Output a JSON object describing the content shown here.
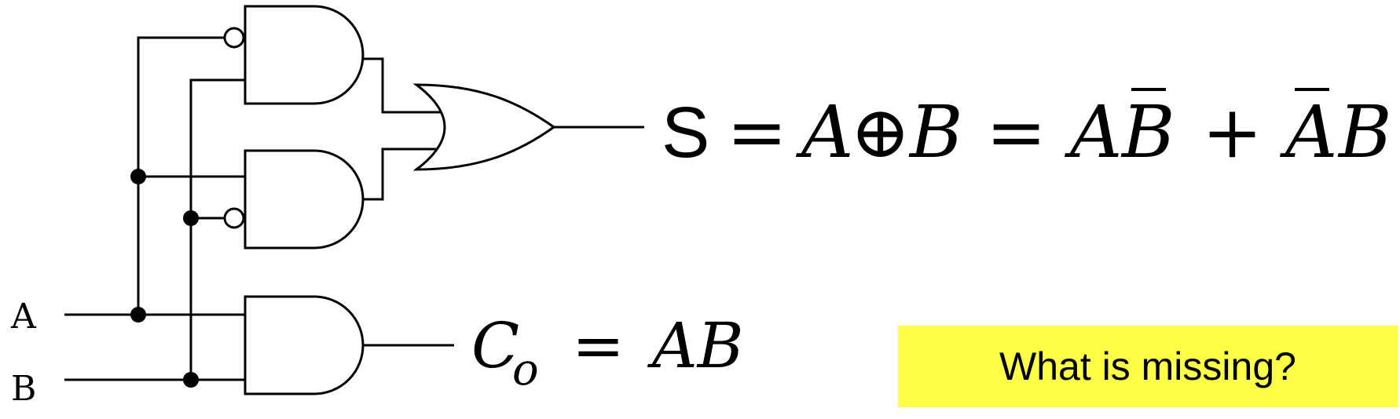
{
  "inputs": {
    "a_label": "A",
    "b_label": "B"
  },
  "sum_equation": {
    "lhs": "S",
    "equals": "=",
    "xor_left": "A",
    "xor_symbol": "⊕",
    "xor_right": "B",
    "term1_left": "A",
    "term1_right": "B",
    "plus": "+",
    "term2_left": "A",
    "term2_right": "B"
  },
  "carry_equation": {
    "symbol": "C",
    "subscript": "o",
    "equals": "=",
    "rhs": "AB"
  },
  "note": {
    "text": "What is missing?",
    "background": "#ffff47"
  },
  "icons": {
    "and_gate": "and-gate-icon",
    "or_gate": "or-gate-icon",
    "inverter_bubble": "inverter-bubble-icon",
    "junction": "junction-dot-icon"
  }
}
